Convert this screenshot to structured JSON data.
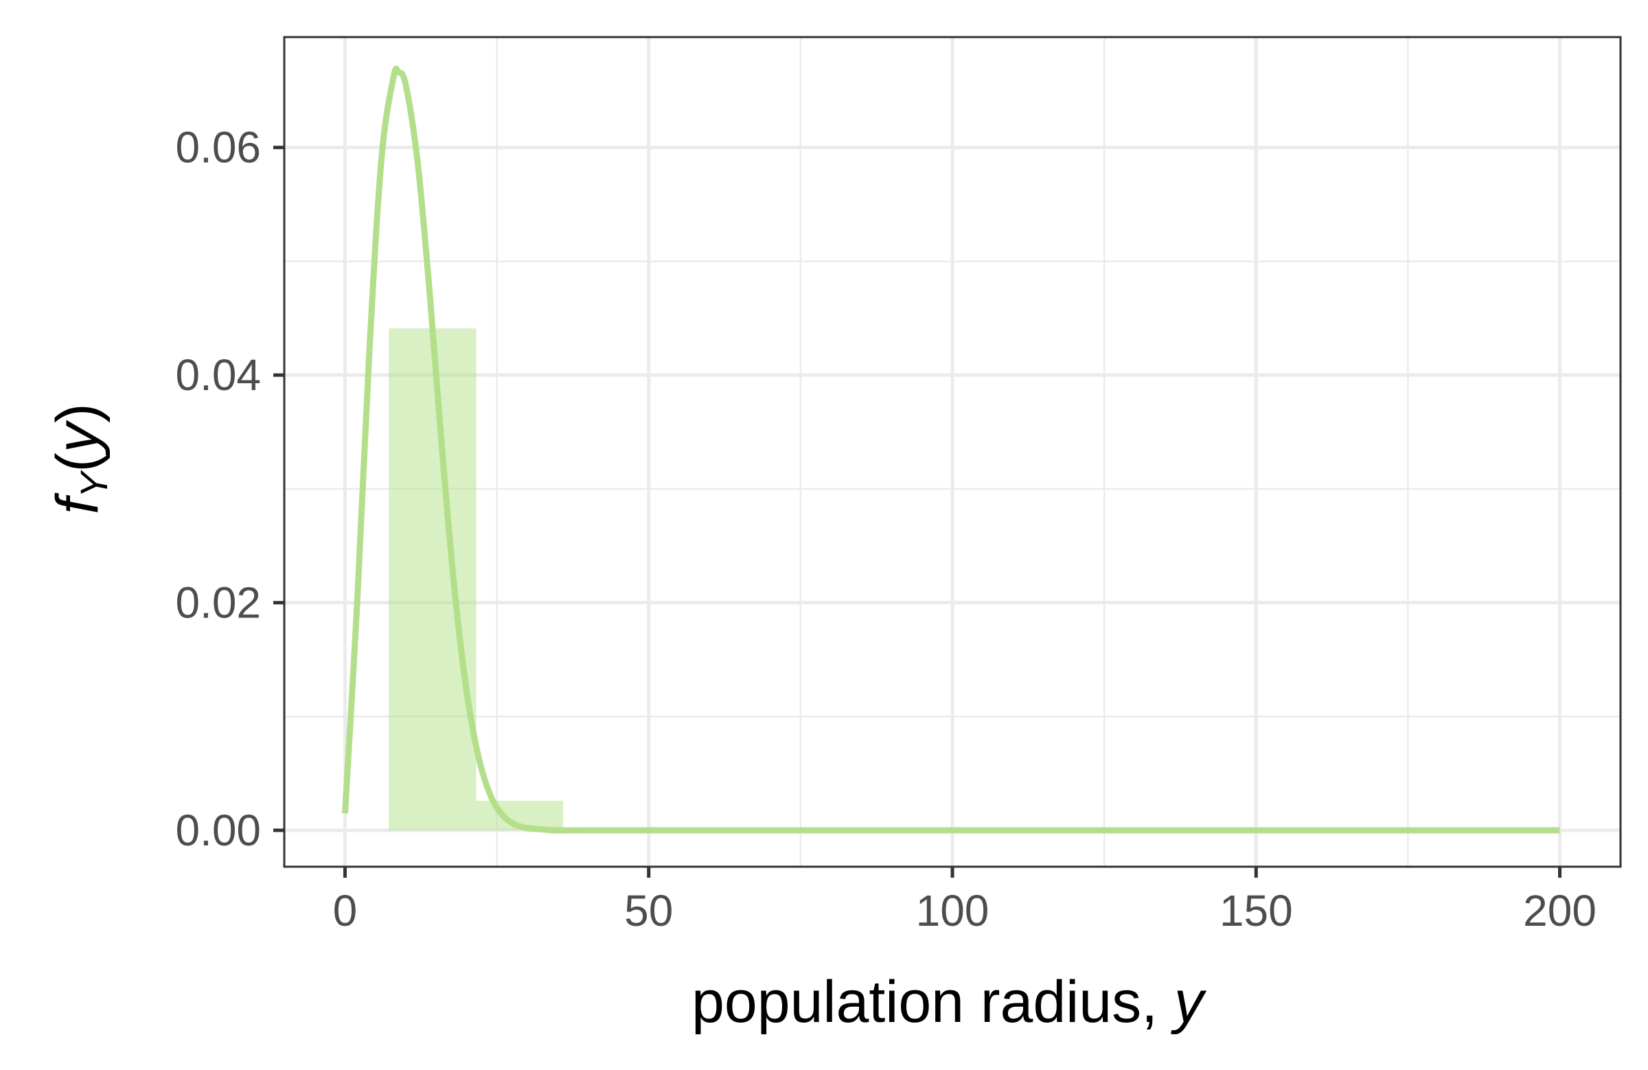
{
  "chart_data": {
    "type": "bar",
    "title": "",
    "xlabel_parts": [
      "population radius, ",
      "y"
    ],
    "ylabel_parts": [
      "f",
      "Y",
      "(",
      "y",
      ")"
    ],
    "xlim": [
      -10,
      210
    ],
    "ylim": [
      -0.0032,
      0.0697
    ],
    "x_ticks": [
      0,
      50,
      100,
      150,
      200
    ],
    "x_tick_labels": [
      "0",
      "50",
      "100",
      "150",
      "200"
    ],
    "y_ticks": [
      0,
      0.02,
      0.04,
      0.06
    ],
    "y_tick_labels": [
      "0.00",
      "0.02",
      "0.04",
      "0.06"
    ],
    "x_minor_ticks": [
      25,
      75,
      125,
      175
    ],
    "y_minor_ticks": [
      0.01,
      0.03,
      0.05
    ],
    "grid": true,
    "legend": "none",
    "histogram": {
      "bins": [
        {
          "x0": 7.2,
          "x1": 21.6,
          "density": 0.0441
        },
        {
          "x0": 21.6,
          "x1": 35.9,
          "density": 0.0026
        }
      ],
      "color": "#b3df8a",
      "opacity": 0.5
    },
    "density_curve": {
      "color": "#b3df8a",
      "points": [
        [
          0,
          0.0015
        ],
        [
          2,
          0.02
        ],
        [
          4,
          0.042
        ],
        [
          6,
          0.059
        ],
        [
          8,
          0.0662
        ],
        [
          8.8,
          0.0666
        ],
        [
          10,
          0.0655
        ],
        [
          12,
          0.0585
        ],
        [
          14,
          0.0468
        ],
        [
          16,
          0.0333
        ],
        [
          18,
          0.0213
        ],
        [
          20,
          0.0123
        ],
        [
          22,
          0.0064
        ],
        [
          24,
          0.003
        ],
        [
          26,
          0.0013
        ],
        [
          28,
          0.0005
        ],
        [
          30,
          0.0002
        ],
        [
          32,
          0.0001
        ],
        [
          35,
          0.0
        ],
        [
          40,
          0.0
        ],
        [
          100,
          0.0
        ],
        [
          200,
          0.0
        ]
      ]
    }
  }
}
